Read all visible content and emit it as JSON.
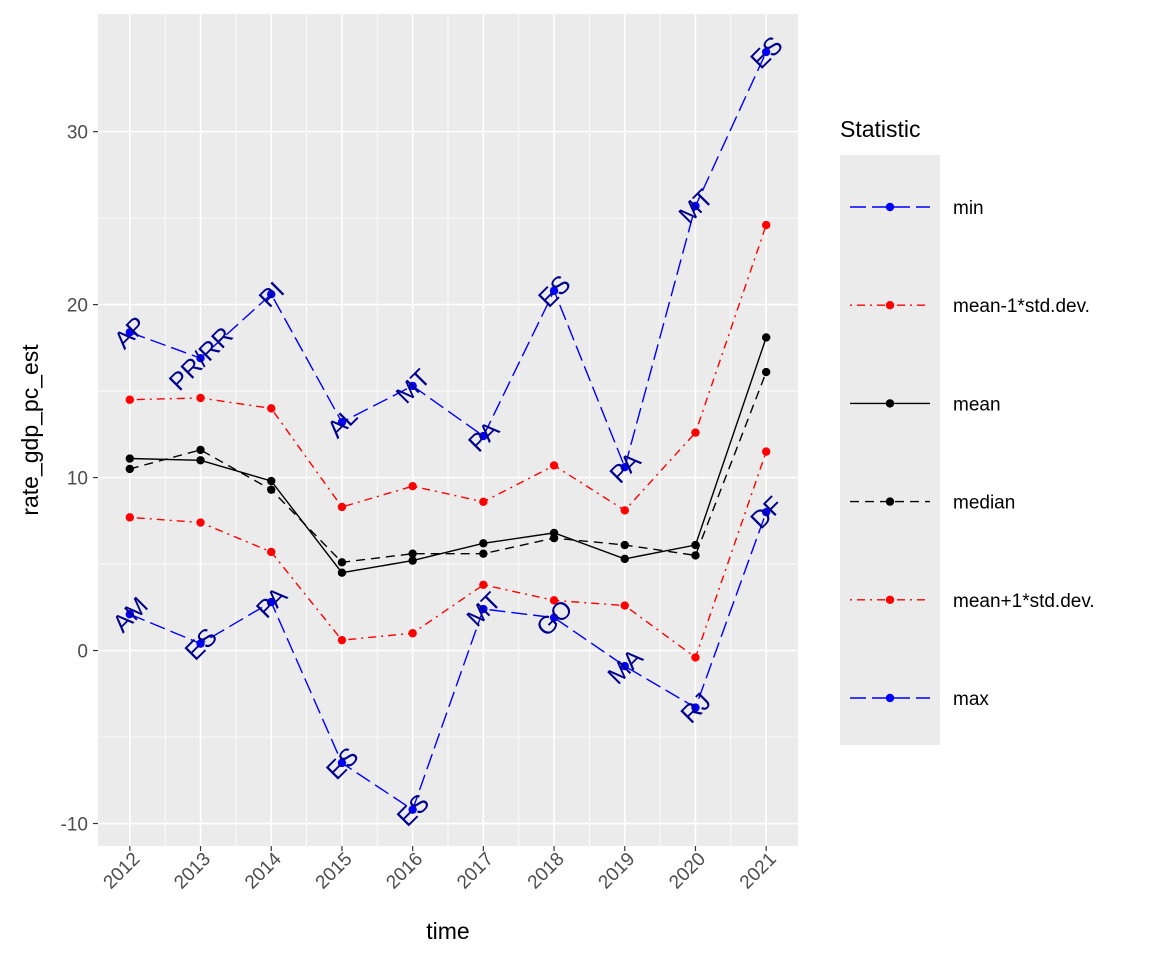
{
  "chart_data": {
    "type": "line",
    "xlabel": "time",
    "ylabel": "rate_gdp_pc_est",
    "x": [
      2012,
      2013,
      2014,
      2015,
      2016,
      2017,
      2018,
      2019,
      2020,
      2021
    ],
    "xlim": [
      2011.55,
      2021.45
    ],
    "ylim": [
      -11.3,
      36.8
    ],
    "y_ticks": [
      -10,
      0,
      10,
      20,
      30
    ],
    "grid": true,
    "legend": {
      "title": "Statistic",
      "position": "right",
      "entries": [
        {
          "label": "min",
          "color": "#0000ff",
          "dash": "longdash"
        },
        {
          "label": "mean-1*std.dev.",
          "color": "#ff0000",
          "dash": "dotdash"
        },
        {
          "label": "mean",
          "color": "#000000",
          "dash": "solid"
        },
        {
          "label": "median",
          "color": "#000000",
          "dash": "dashed"
        },
        {
          "label": "mean+1*std.dev.",
          "color": "#ff0000",
          "dash": "dotdash"
        },
        {
          "label": "max",
          "color": "#0000ff",
          "dash": "longdash"
        }
      ]
    },
    "series": [
      {
        "name": "min",
        "color": "#0000ff",
        "dash": "longdash",
        "values": [
          2.1,
          0.4,
          2.8,
          -6.5,
          -9.2,
          2.4,
          1.9,
          -0.9,
          -3.3,
          8.0
        ],
        "labels": [
          "AM",
          "ES",
          "PA",
          "ES",
          "ES",
          "MT",
          "GO",
          "MA",
          "RJ",
          "DF"
        ]
      },
      {
        "name": "mean-1*std.dev.",
        "color": "#ff0000",
        "dash": "dotdash",
        "values": [
          7.7,
          7.4,
          5.7,
          0.6,
          1.0,
          3.8,
          2.9,
          2.6,
          -0.4,
          11.5
        ]
      },
      {
        "name": "mean",
        "color": "#000000",
        "dash": "solid",
        "values": [
          11.1,
          11.0,
          9.8,
          4.5,
          5.2,
          6.2,
          6.8,
          5.3,
          6.1,
          18.1
        ]
      },
      {
        "name": "median",
        "color": "#000000",
        "dash": "dashed",
        "values": [
          10.5,
          11.6,
          9.3,
          5.1,
          5.6,
          5.6,
          6.5,
          6.1,
          5.5,
          16.1
        ]
      },
      {
        "name": "mean+1*std.dev.",
        "color": "#ff0000",
        "dash": "dotdash",
        "values": [
          14.5,
          14.6,
          14.0,
          8.3,
          9.5,
          8.6,
          10.7,
          8.1,
          12.6,
          24.6
        ]
      },
      {
        "name": "max",
        "color": "#0000ff",
        "dash": "longdash",
        "values": [
          18.4,
          16.9,
          20.6,
          13.2,
          15.3,
          12.4,
          20.8,
          10.6,
          25.7,
          34.6
        ],
        "labels": [
          "AP",
          "PR/RR",
          "PI",
          "AL",
          "MT",
          "PA",
          "ES",
          "PA",
          "MT",
          "ES"
        ]
      }
    ]
  }
}
